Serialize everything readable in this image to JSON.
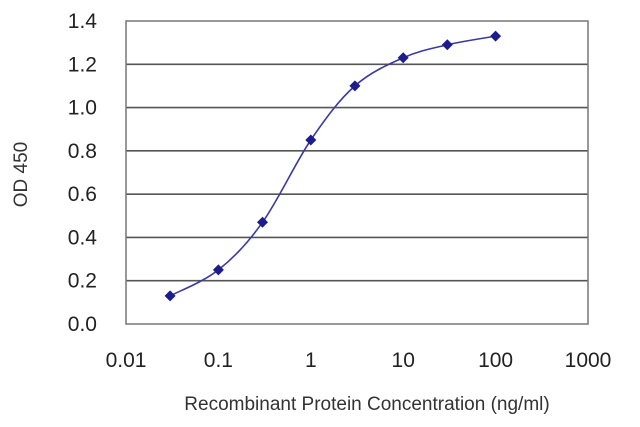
{
  "chart_data": {
    "type": "line",
    "title": "",
    "xlabel": "Recombinant Protein Concentration (ng/ml)",
    "ylabel": "OD 450",
    "x_scale": "log",
    "xlim": [
      0.01,
      1000
    ],
    "ylim": [
      0.0,
      1.4
    ],
    "x_ticks": [
      0.01,
      0.1,
      1,
      10,
      100,
      1000
    ],
    "x_tick_labels": [
      "0.01",
      "0.1",
      "1",
      "10",
      "100",
      "1000"
    ],
    "y_ticks": [
      0.0,
      0.2,
      0.4,
      0.6,
      0.8,
      1.0,
      1.2,
      1.4
    ],
    "y_tick_labels": [
      "0.0",
      "0.2",
      "0.4",
      "0.6",
      "0.8",
      "1.0",
      "1.2",
      "1.4"
    ],
    "grid": "horizontal",
    "legend": "none",
    "series": [
      {
        "x": [
          0.03,
          0.1,
          0.3,
          1,
          3,
          10,
          30,
          100
        ],
        "y": [
          0.13,
          0.25,
          0.47,
          0.85,
          1.1,
          1.23,
          1.29,
          1.33
        ],
        "marker": "diamond",
        "line": "smooth",
        "color": "#3a3aa0"
      }
    ],
    "colors": {
      "series": "#3a3aa0",
      "marker": "#1c1c8c",
      "grid": "#555555",
      "frame": "#777777"
    }
  }
}
